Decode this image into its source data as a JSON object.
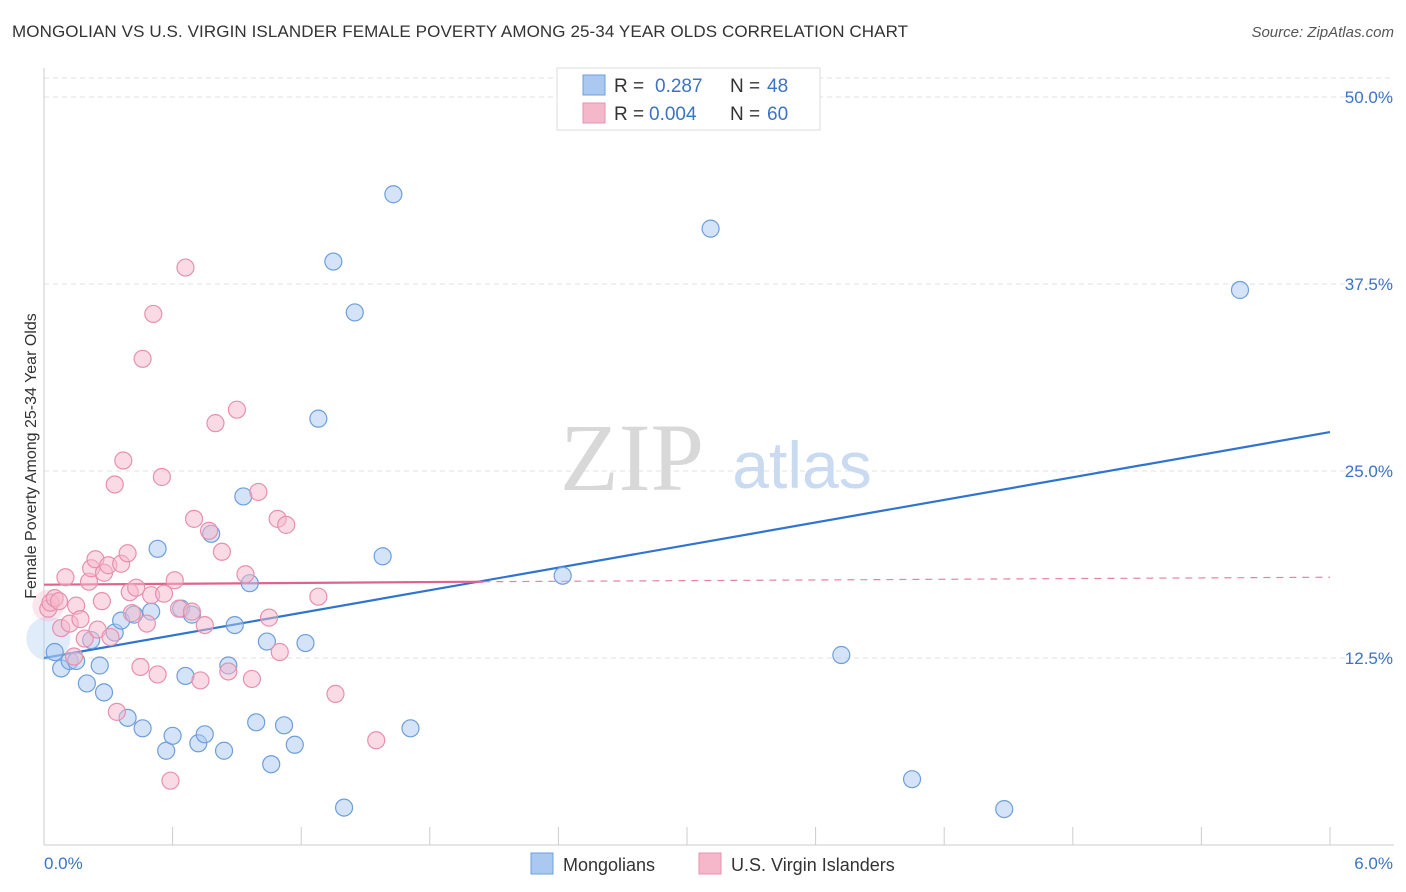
{
  "header": {
    "title": "MONGOLIAN VS U.S. VIRGIN ISLANDER FEMALE POVERTY AMONG 25-34 YEAR OLDS CORRELATION CHART",
    "source": "Source: ZipAtlas.com"
  },
  "watermark": {
    "zip": "ZIP",
    "atlas": "atlas"
  },
  "legend_stats": {
    "rows": [
      {
        "r_label": "R =",
        "r_value": "0.287",
        "n_label": "N =",
        "n_value": "48",
        "color": "#aac8f0"
      },
      {
        "r_label": "R =",
        "r_value": "0.004",
        "n_label": "N =",
        "n_value": "60",
        "color": "#f5b8cb"
      }
    ]
  },
  "chart_data": {
    "type": "scatter",
    "title": "MONGOLIAN VS U.S. VIRGIN ISLANDER FEMALE POVERTY AMONG 25-34 YEAR OLDS CORRELATION CHART",
    "xlabel": "",
    "ylabel": "Female Poverty Among 25-34 Year Olds",
    "xlim": [
      0,
      6
    ],
    "ylim": [
      0,
      50
    ],
    "x_tick_labels": [
      "0.0%",
      "6.0%"
    ],
    "y_ticks": [
      12.5,
      25.0,
      37.5,
      50.0
    ],
    "y_tick_labels": [
      "12.5%",
      "25.0%",
      "37.5%",
      "50.0%"
    ],
    "grid": true,
    "legend_position": "bottom-center",
    "series": [
      {
        "name": "Mongolians",
        "color": "#6d9fdc",
        "fill": "#aac8f0",
        "trend": {
          "x0": 0.0,
          "y0": 12.5,
          "x1": 6.0,
          "y1": 27.6,
          "color": "#2f74d0"
        },
        "points": [
          [
            0.05,
            12.9
          ],
          [
            0.08,
            11.8
          ],
          [
            0.12,
            12.3
          ],
          [
            0.15,
            12.3
          ],
          [
            0.2,
            10.8
          ],
          [
            0.22,
            13.7
          ],
          [
            0.26,
            12.0
          ],
          [
            0.28,
            10.2
          ],
          [
            0.33,
            14.2
          ],
          [
            0.36,
            15.0
          ],
          [
            0.39,
            8.5
          ],
          [
            0.42,
            15.4
          ],
          [
            0.46,
            7.8
          ],
          [
            0.5,
            15.6
          ],
          [
            0.53,
            19.8
          ],
          [
            0.57,
            6.3
          ],
          [
            0.6,
            7.3
          ],
          [
            0.64,
            15.8
          ],
          [
            0.66,
            11.3
          ],
          [
            0.69,
            15.4
          ],
          [
            0.72,
            6.8
          ],
          [
            0.75,
            7.4
          ],
          [
            0.78,
            20.8
          ],
          [
            0.84,
            6.3
          ],
          [
            0.86,
            12.0
          ],
          [
            0.89,
            14.7
          ],
          [
            0.93,
            23.3
          ],
          [
            0.96,
            17.5
          ],
          [
            0.99,
            8.2
          ],
          [
            1.04,
            13.6
          ],
          [
            1.06,
            5.4
          ],
          [
            1.12,
            8.0
          ],
          [
            1.17,
            6.7
          ],
          [
            1.22,
            13.5
          ],
          [
            1.28,
            28.5
          ],
          [
            1.35,
            39.0
          ],
          [
            1.4,
            2.5
          ],
          [
            1.45,
            35.6
          ],
          [
            1.58,
            19.3
          ],
          [
            1.63,
            43.5
          ],
          [
            1.71,
            7.8
          ],
          [
            2.42,
            18.0
          ],
          [
            3.11,
            41.2
          ],
          [
            3.72,
            12.7
          ],
          [
            4.05,
            4.4
          ],
          [
            4.48,
            2.4
          ],
          [
            5.58,
            37.1
          ]
        ]
      },
      {
        "name": "U.S. Virgin Islanders",
        "color": "#e890ad",
        "fill": "#f5b8cb",
        "trend": {
          "x0": 0.0,
          "y0": 17.4,
          "x1": 2.05,
          "y1": 17.6,
          "x_dash_end": 6.0,
          "y_dash_end": 17.9,
          "color": "#e0638e"
        },
        "points": [
          [
            0.02,
            15.8
          ],
          [
            0.03,
            16.2
          ],
          [
            0.05,
            16.5
          ],
          [
            0.07,
            16.3
          ],
          [
            0.08,
            14.5
          ],
          [
            0.1,
            17.9
          ],
          [
            0.12,
            14.8
          ],
          [
            0.14,
            12.6
          ],
          [
            0.15,
            16.0
          ],
          [
            0.17,
            15.1
          ],
          [
            0.19,
            13.8
          ],
          [
            0.21,
            17.6
          ],
          [
            0.22,
            18.5
          ],
          [
            0.24,
            19.1
          ],
          [
            0.25,
            14.4
          ],
          [
            0.27,
            16.3
          ],
          [
            0.28,
            18.2
          ],
          [
            0.3,
            18.7
          ],
          [
            0.31,
            13.9
          ],
          [
            0.33,
            24.1
          ],
          [
            0.34,
            8.9
          ],
          [
            0.36,
            18.8
          ],
          [
            0.37,
            25.7
          ],
          [
            0.39,
            19.5
          ],
          [
            0.4,
            16.9
          ],
          [
            0.41,
            15.5
          ],
          [
            0.43,
            17.2
          ],
          [
            0.45,
            11.9
          ],
          [
            0.46,
            32.5
          ],
          [
            0.48,
            14.8
          ],
          [
            0.5,
            16.7
          ],
          [
            0.51,
            35.5
          ],
          [
            0.53,
            11.4
          ],
          [
            0.55,
            24.6
          ],
          [
            0.56,
            16.8
          ],
          [
            0.59,
            4.3
          ],
          [
            0.61,
            17.7
          ],
          [
            0.63,
            15.8
          ],
          [
            0.66,
            38.6
          ],
          [
            0.69,
            15.6
          ],
          [
            0.7,
            21.8
          ],
          [
            0.73,
            11.0
          ],
          [
            0.75,
            14.7
          ],
          [
            0.77,
            21.0
          ],
          [
            0.8,
            28.2
          ],
          [
            0.83,
            19.6
          ],
          [
            0.86,
            11.6
          ],
          [
            0.9,
            29.1
          ],
          [
            0.94,
            18.1
          ],
          [
            0.97,
            11.1
          ],
          [
            1.0,
            23.6
          ],
          [
            1.05,
            15.2
          ],
          [
            1.09,
            21.8
          ],
          [
            1.1,
            12.9
          ],
          [
            1.13,
            21.4
          ],
          [
            1.28,
            16.6
          ],
          [
            1.36,
            10.1
          ],
          [
            1.55,
            7.0
          ]
        ]
      }
    ]
  },
  "bottom_legend": {
    "items": [
      {
        "label": "Mongolians",
        "color": "#aac8f0",
        "border": "#6d9fdc"
      },
      {
        "label": "U.S. Virgin Islanders",
        "color": "#f5b8cb",
        "border": "#e890ad"
      }
    ]
  }
}
